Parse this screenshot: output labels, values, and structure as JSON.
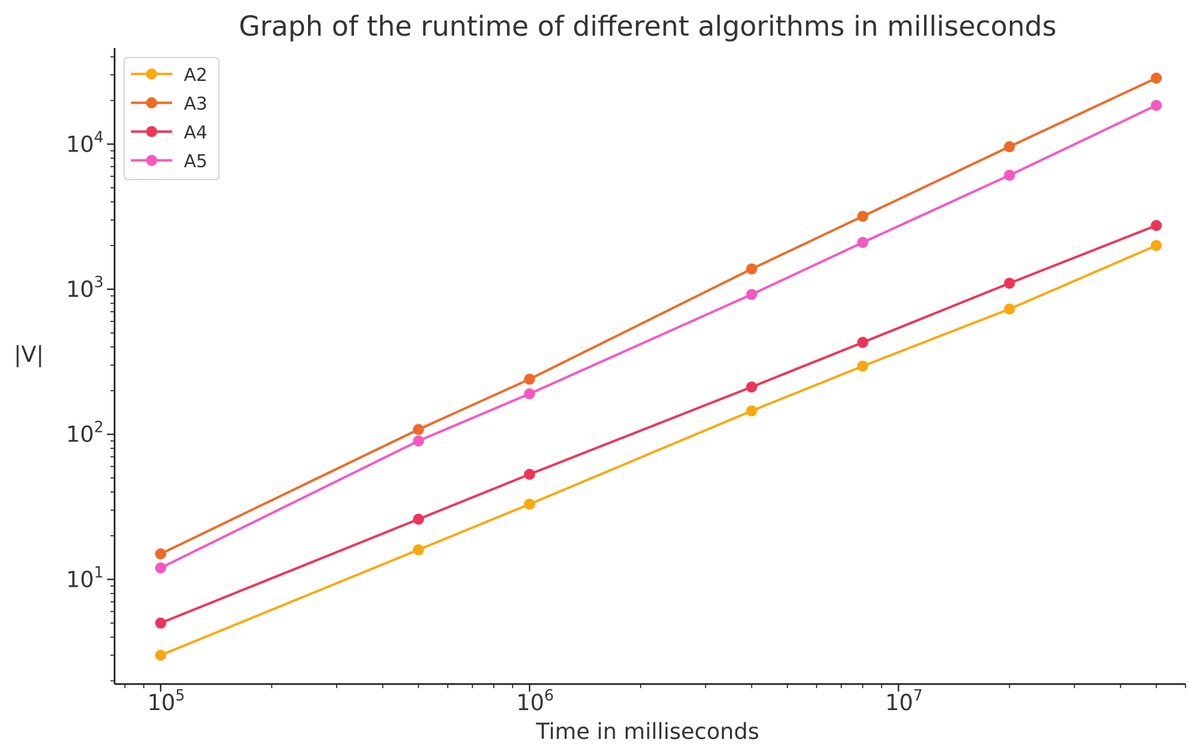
{
  "chart_data": {
    "type": "line",
    "title": "Graph of the runtime of different algorithms in milliseconds",
    "xlabel": "Time in milliseconds",
    "ylabel": "|V|",
    "xscale": "log",
    "yscale": "log",
    "xlim": [
      75000,
      60000000
    ],
    "ylim": [
      1.9,
      46000
    ],
    "grid": false,
    "legend_position": "top-left",
    "x": [
      100000,
      500000,
      1000000,
      4000000,
      8000000,
      20000000,
      50000000
    ],
    "x_ticks": [
      {
        "value": 100000,
        "base": "10",
        "exp": "5"
      },
      {
        "value": 1000000,
        "base": "10",
        "exp": "6"
      },
      {
        "value": 10000000,
        "base": "10",
        "exp": "7"
      }
    ],
    "y_ticks": [
      {
        "value": 10,
        "base": "10",
        "exp": "1"
      },
      {
        "value": 100,
        "base": "10",
        "exp": "2"
      },
      {
        "value": 1000,
        "base": "10",
        "exp": "3"
      },
      {
        "value": 10000,
        "base": "10",
        "exp": "4"
      }
    ],
    "series": [
      {
        "name": "A2",
        "color": "#f9a80e",
        "values": [
          3,
          16,
          33,
          145,
          295,
          730,
          2000
        ]
      },
      {
        "name": "A3",
        "color": "#ee6a26",
        "values": [
          15,
          108,
          240,
          1380,
          3180,
          9600,
          28500
        ]
      },
      {
        "name": "A4",
        "color": "#ee3457",
        "values": [
          5,
          26,
          53,
          212,
          430,
          1100,
          2750
        ]
      },
      {
        "name": "A5",
        "color": "#f756c2",
        "values": [
          12,
          90,
          190,
          920,
          2100,
          6100,
          18500
        ]
      }
    ]
  }
}
